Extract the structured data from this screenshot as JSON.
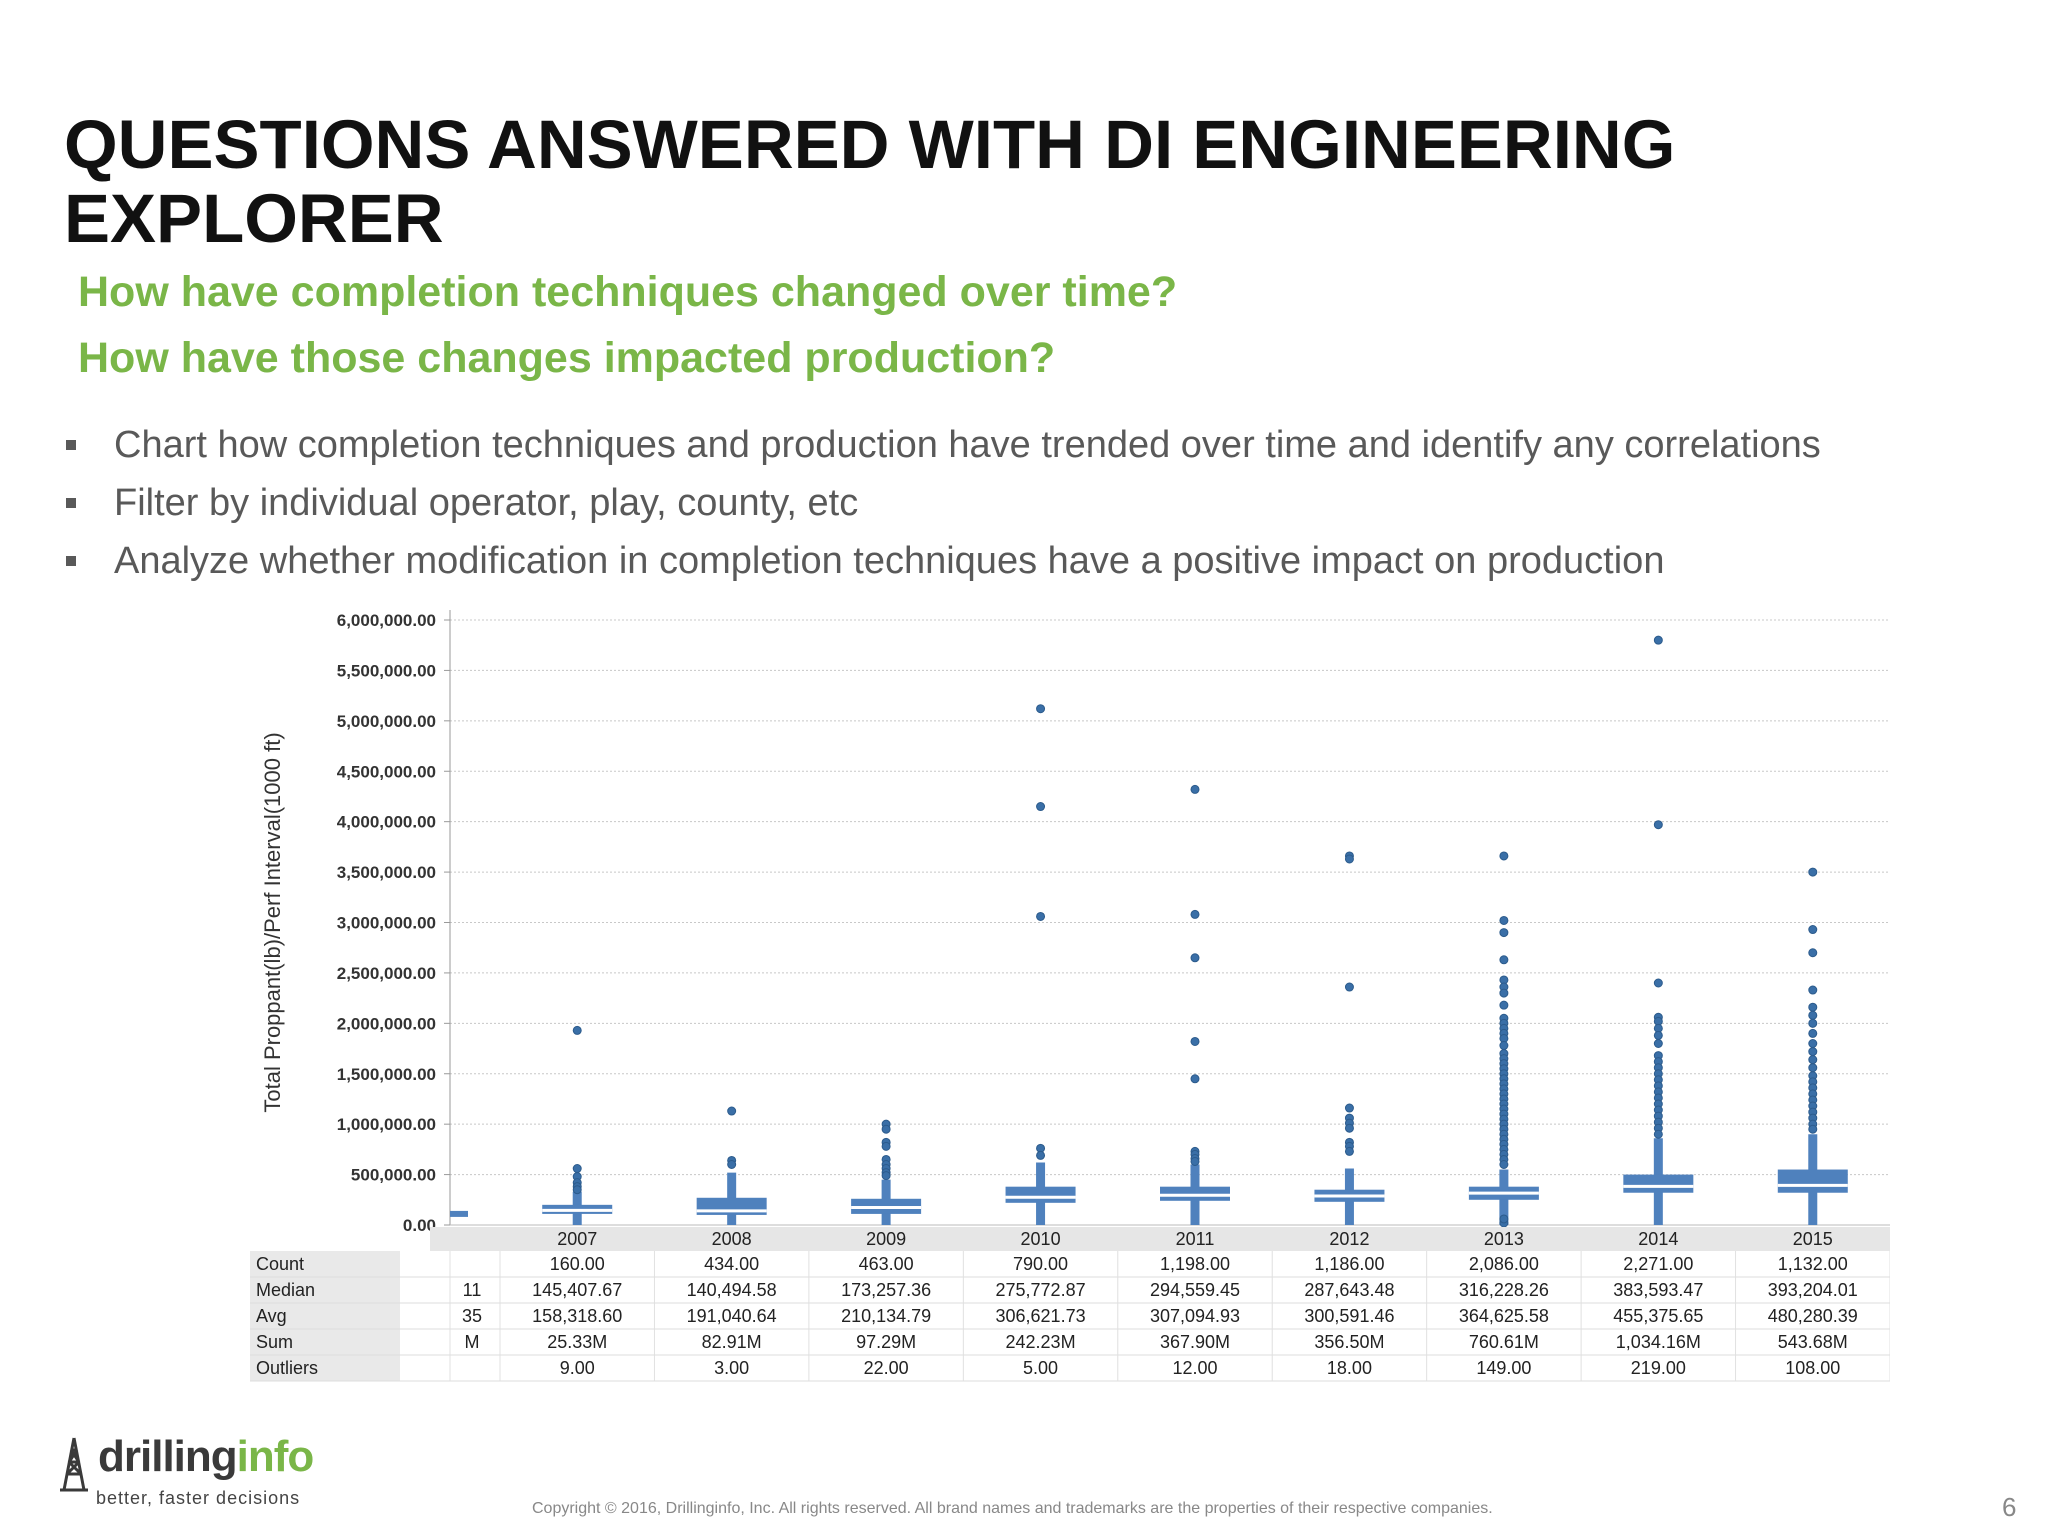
{
  "slide": {
    "title": "QUESTIONS ANSWERED WITH DI ENGINEERING EXPLORER",
    "questions": [
      "How have completion techniques changed over time?",
      "How have those changes impacted production?"
    ],
    "bullets": [
      "Chart how completion techniques and production have trended over time and identify any correlations",
      "Filter by individual operator, play, county, etc",
      "Analyze whether modification in completion techniques have a positive impact on production"
    ],
    "logo": {
      "name_part1": "drilling",
      "name_part2": "info",
      "tagline": "better, faster decisions"
    },
    "copyright": "Copyright © 2016, Drillinginfo, Inc. All rights reserved. All brand names and trademarks are the properties of their respective companies.",
    "page_number": "6"
  },
  "colors": {
    "accent_green": "#7ab648",
    "box_blue": "#4f81bd",
    "title_black": "#111111",
    "text_gray": "#595959"
  },
  "chart_data": {
    "type": "box",
    "ylabel": "Total Proppant(lb)/Perf Interval(1000 ft)",
    "ylim": [
      0,
      6000000
    ],
    "yticks": [
      0,
      500000,
      1000000,
      1500000,
      2000000,
      2500000,
      3000000,
      3500000,
      4000000,
      4500000,
      5000000,
      5500000,
      6000000
    ],
    "ytick_labels": [
      "0.00",
      "500,000.00",
      "1,000,000.00",
      "1,500,000.00",
      "2,000,000.00",
      "2,500,000.00",
      "3,000,000.00",
      "3,500,000.00",
      "4,000,000.00",
      "4,500,000.00",
      "5,000,000.00",
      "5,500,000.00",
      "6,000,000.00"
    ],
    "grid": true,
    "categories": [
      "2007",
      "2008",
      "2009",
      "2010",
      "2011",
      "2012",
      "2013",
      "2014",
      "2015"
    ],
    "boxes": [
      {
        "q1": 110000,
        "median": 145408,
        "q3": 200000,
        "whisker_low": 0,
        "whisker_high": 330000,
        "outliers": [
          1930000,
          560000,
          480000,
          420000,
          380000,
          350000
        ]
      },
      {
        "q1": 100000,
        "median": 140495,
        "q3": 270000,
        "whisker_low": 0,
        "whisker_high": 520000,
        "outliers": [
          1130000,
          640000,
          600000
        ]
      },
      {
        "q1": 110000,
        "median": 173257,
        "q3": 260000,
        "whisker_low": 0,
        "whisker_high": 450000,
        "outliers": [
          1000000,
          950000,
          820000,
          780000,
          650000,
          600000,
          560000,
          520000,
          490000
        ]
      },
      {
        "q1": 220000,
        "median": 275773,
        "q3": 380000,
        "whisker_low": 0,
        "whisker_high": 620000,
        "outliers": [
          5120000,
          4150000,
          3060000,
          760000,
          690000
        ]
      },
      {
        "q1": 240000,
        "median": 294559,
        "q3": 380000,
        "whisker_low": 0,
        "whisker_high": 600000,
        "outliers": [
          4320000,
          3080000,
          2650000,
          1820000,
          1450000,
          730000,
          700000,
          660000,
          630000
        ]
      },
      {
        "q1": 230000,
        "median": 287643,
        "q3": 350000,
        "whisker_low": 0,
        "whisker_high": 560000,
        "outliers": [
          3660000,
          3630000,
          2360000,
          1160000,
          1060000,
          1010000,
          960000,
          820000,
          780000,
          730000
        ]
      },
      {
        "q1": 250000,
        "median": 316228,
        "q3": 380000,
        "whisker_low": 0,
        "whisker_high": 550000,
        "outliers": [
          3660000,
          3020000,
          2900000,
          2630000,
          2430000,
          2360000,
          2300000,
          2180000,
          2050000,
          2000000,
          1950000,
          1900000,
          1850000,
          1780000,
          1700000,
          1650000,
          1600000,
          1550000,
          1500000,
          1450000,
          1400000,
          1350000,
          1300000,
          1250000,
          1200000,
          1150000,
          1100000,
          1050000,
          1000000,
          950000,
          900000,
          850000,
          800000,
          750000,
          700000,
          650000,
          600000,
          20000,
          60000
        ]
      },
      {
        "q1": 320000,
        "median": 383593,
        "q3": 500000,
        "whisker_low": 0,
        "whisker_high": 860000,
        "outliers": [
          5800000,
          3970000,
          2400000,
          2060000,
          2020000,
          1950000,
          1880000,
          1800000,
          1680000,
          1620000,
          1560000,
          1500000,
          1440000,
          1380000,
          1320000,
          1260000,
          1200000,
          1140000,
          1080000,
          1020000,
          960000,
          900000
        ]
      },
      {
        "q1": 320000,
        "median": 393204,
        "q3": 550000,
        "whisker_low": 0,
        "whisker_high": 900000,
        "outliers": [
          3500000,
          2930000,
          2700000,
          2330000,
          2160000,
          2080000,
          2000000,
          1900000,
          1800000,
          1720000,
          1640000,
          1560000,
          1480000,
          1420000,
          1360000,
          1300000,
          1240000,
          1180000,
          1120000,
          1060000,
          1000000,
          950000
        ]
      }
    ],
    "partial_left_box": {
      "median": 110000
    },
    "table": {
      "row_labels": [
        "Count",
        "Median",
        "Avg",
        "Sum",
        "Outliers"
      ],
      "partial_column": [
        "",
        "11",
        "35",
        "M",
        ""
      ],
      "columns": [
        [
          "160.00",
          "145,407.67",
          "158,318.60",
          "25.33M",
          "9.00"
        ],
        [
          "434.00",
          "140,494.58",
          "191,040.64",
          "82.91M",
          "3.00"
        ],
        [
          "463.00",
          "173,257.36",
          "210,134.79",
          "97.29M",
          "22.00"
        ],
        [
          "790.00",
          "275,772.87",
          "306,621.73",
          "242.23M",
          "5.00"
        ],
        [
          "1,198.00",
          "294,559.45",
          "307,094.93",
          "367.90M",
          "12.00"
        ],
        [
          "1,186.00",
          "287,643.48",
          "300,591.46",
          "356.50M",
          "18.00"
        ],
        [
          "2,086.00",
          "316,228.26",
          "364,625.58",
          "760.61M",
          "149.00"
        ],
        [
          "2,271.00",
          "383,593.47",
          "455,375.65",
          "1,034.16M",
          "219.00"
        ],
        [
          "1,132.00",
          "393,204.01",
          "480,280.39",
          "543.68M",
          "108.00"
        ]
      ]
    }
  }
}
